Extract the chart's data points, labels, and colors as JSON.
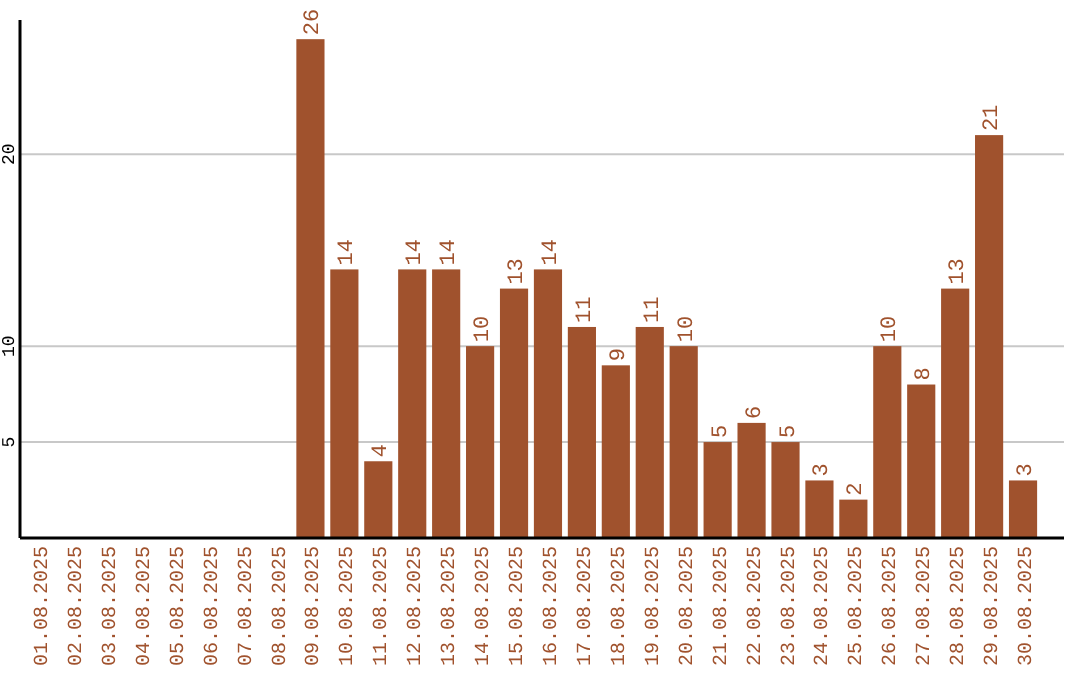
{
  "chart_data": {
    "type": "bar",
    "categories": [
      "01.08.2025",
      "02.08.2025",
      "03.08.2025",
      "04.08.2025",
      "05.08.2025",
      "06.08.2025",
      "07.08.2025",
      "08.08.2025",
      "09.08.2025",
      "10.08.2025",
      "11.08.2025",
      "12.08.2025",
      "13.08.2025",
      "14.08.2025",
      "15.08.2025",
      "16.08.2025",
      "17.08.2025",
      "18.08.2025",
      "19.08.2025",
      "20.08.2025",
      "21.08.2025",
      "22.08.2025",
      "23.08.2025",
      "24.08.2025",
      "25.08.2025",
      "26.08.2025",
      "27.08.2025",
      "28.08.2025",
      "29.08.2025",
      "30.08.2025"
    ],
    "values": [
      null,
      null,
      null,
      null,
      null,
      null,
      null,
      null,
      26,
      14,
      4,
      14,
      14,
      10,
      13,
      14,
      11,
      9,
      11,
      10,
      5,
      6,
      5,
      3,
      2,
      10,
      8,
      13,
      21,
      3
    ],
    "color": "#a0522d",
    "ylim": [
      0,
      27
    ],
    "yticks": [
      5,
      10,
      20
    ],
    "grid": "y",
    "data_labels": true
  }
}
